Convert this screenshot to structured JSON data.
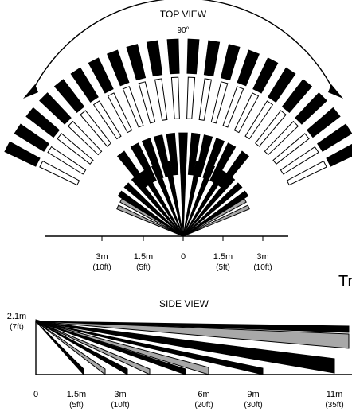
{
  "top_view": {
    "title": "TOP VIEW",
    "angle_label": "90°",
    "axis": [
      {
        "m": "3m",
        "ft": "(10ft)"
      },
      {
        "m": "1.5m",
        "ft": "(5ft)"
      },
      {
        "m": "0",
        "ft": ""
      },
      {
        "m": "1.5m",
        "ft": "(5ft)"
      },
      {
        "m": "3m",
        "ft": "(10ft)"
      }
    ],
    "cut_text": "Tr"
  },
  "side_view": {
    "title": "SIDE VIEW",
    "height_label": "2.1m",
    "height_ft": "(7ft)",
    "axis": [
      {
        "m": "0",
        "ft": ""
      },
      {
        "m": "1.5m",
        "ft": "(5ft)"
      },
      {
        "m": "3m",
        "ft": "(10ft)"
      },
      {
        "m": "6m",
        "ft": "(20ft)"
      },
      {
        "m": "9m",
        "ft": "(30ft)"
      },
      {
        "m": "11m",
        "ft": "(35ft)"
      }
    ]
  },
  "colors": {
    "line": "#000000",
    "gray": "#a8a8a8",
    "white": "#ffffff"
  }
}
